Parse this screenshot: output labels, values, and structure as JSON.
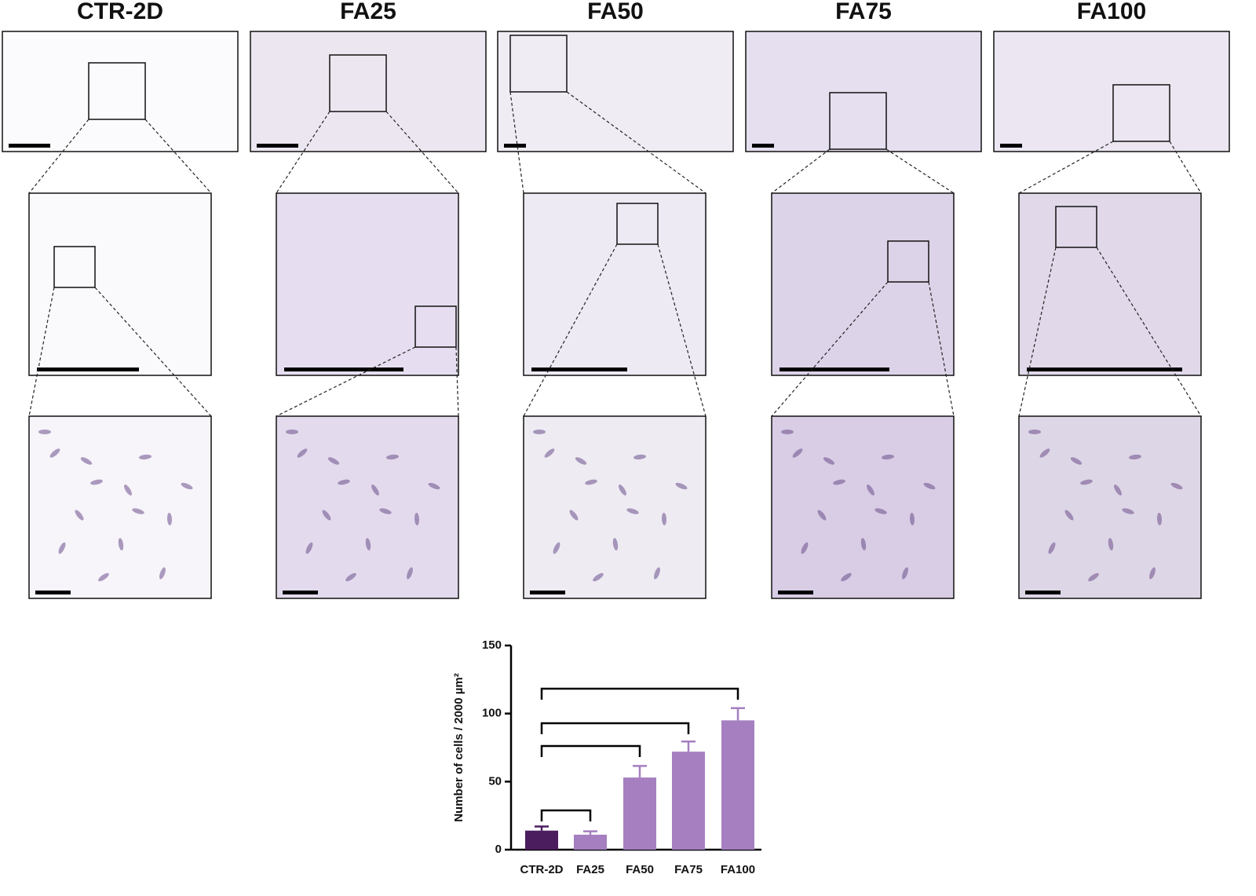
{
  "column_titles": [
    "CTR-2D",
    "FA25",
    "FA50",
    "FA75",
    "FA100"
  ],
  "chart_data": {
    "type": "bar",
    "y_label": "Number of cells / 2000 µm²",
    "categories": [
      "CTR-2D",
      "FA25",
      "FA50",
      "FA75",
      "FA100"
    ],
    "values": [
      14,
      11,
      53,
      72,
      95
    ],
    "errors": [
      3,
      2.5,
      8.5,
      7.5,
      9
    ],
    "colors": [
      "#4b1d5e",
      "#a57fc0",
      "#a57fc0",
      "#a57fc0",
      "#a57fc0"
    ],
    "ylim": [
      0,
      150
    ],
    "yticks": [
      0,
      50,
      100,
      150
    ]
  }
}
